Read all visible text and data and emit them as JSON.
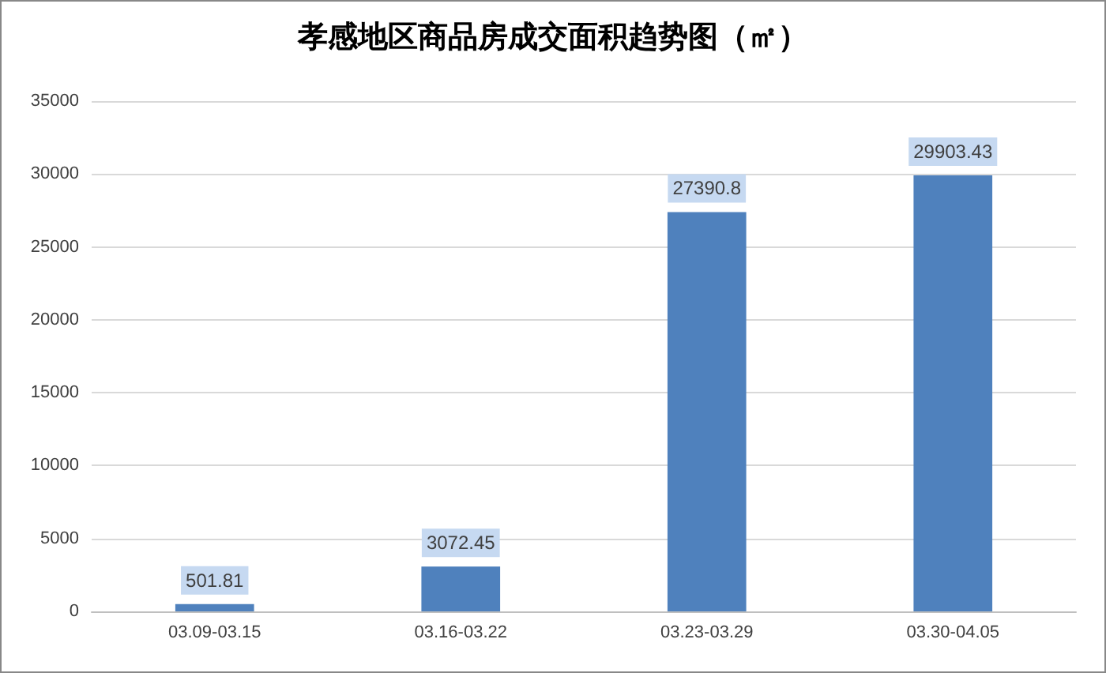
{
  "chart_data": {
    "type": "bar",
    "title": "孝感地区商品房成交面积趋势图（㎡）",
    "categories": [
      "03.09-03.15",
      "03.16-03.22",
      "03.23-03.29",
      "03.30-04.05"
    ],
    "values": [
      501.81,
      3072.45,
      27390.8,
      29903.43
    ],
    "color": "#4f81bd",
    "ylim": [
      0,
      35000
    ],
    "yticks": [
      0,
      5000,
      10000,
      15000,
      20000,
      25000,
      30000,
      35000
    ],
    "grid": "y",
    "data_labels": true
  }
}
